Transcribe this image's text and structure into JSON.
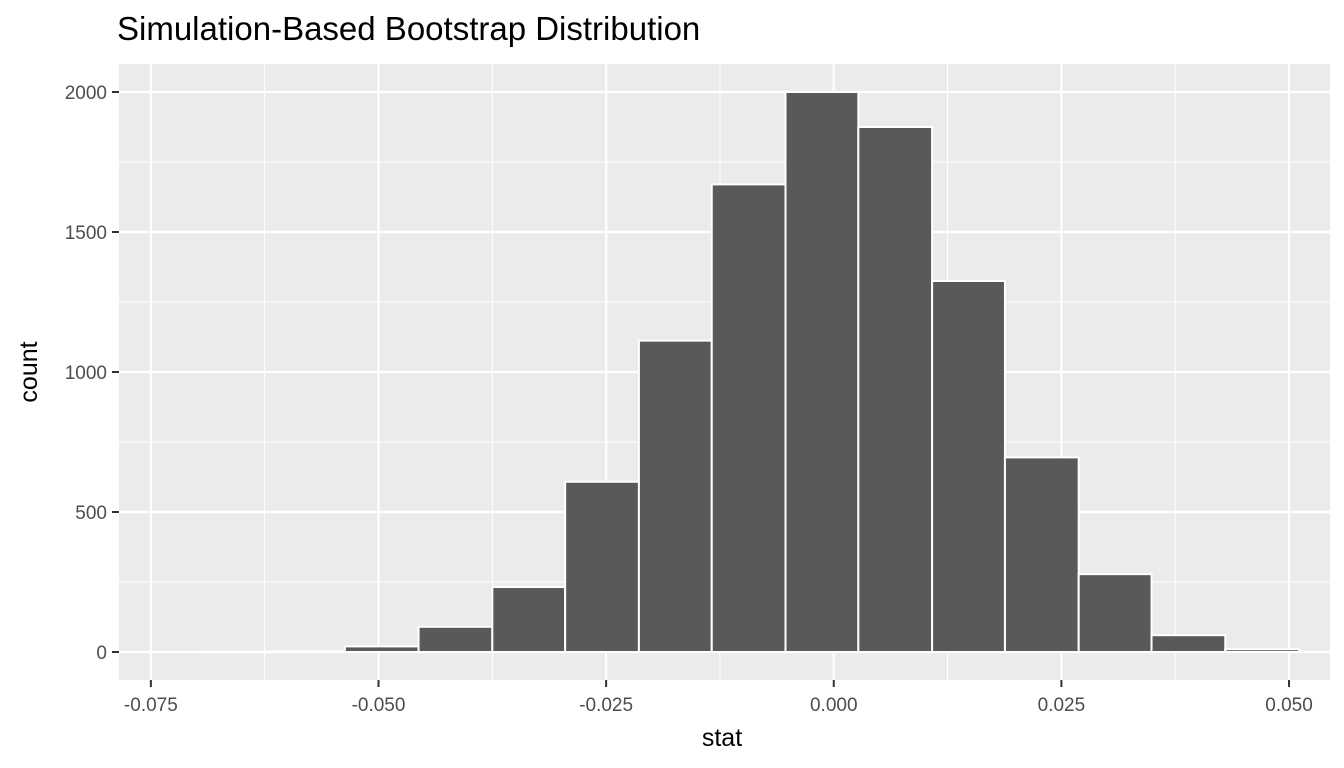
{
  "chart_data": {
    "type": "bar",
    "title": "Simulation-Based Bootstrap Distribution",
    "xlabel": "stat",
    "ylabel": "count",
    "xlim": [
      -0.0785,
      0.0545
    ],
    "ylim": [
      -100,
      2100
    ],
    "x_ticks": [
      -0.075,
      -0.05,
      -0.025,
      0.0,
      0.025,
      0.05
    ],
    "x_tick_labels": [
      "-0.075",
      "-0.050",
      "-0.025",
      "0.000",
      "0.025",
      "0.050"
    ],
    "y_ticks": [
      0,
      500,
      1000,
      1500,
      2000
    ],
    "y_tick_labels": [
      "0",
      "500",
      "1000",
      "1500",
      "2000"
    ],
    "grid": true,
    "bins": [
      {
        "x0": -0.0698,
        "x1": -0.0617,
        "count": 1
      },
      {
        "x0": -0.0617,
        "x1": -0.0537,
        "count": 2
      },
      {
        "x0": -0.0537,
        "x1": -0.0456,
        "count": 20
      },
      {
        "x0": -0.0456,
        "x1": -0.0375,
        "count": 90
      },
      {
        "x0": -0.0375,
        "x1": -0.0295,
        "count": 232
      },
      {
        "x0": -0.0295,
        "x1": -0.0214,
        "count": 608
      },
      {
        "x0": -0.0214,
        "x1": -0.0134,
        "count": 1112
      },
      {
        "x0": -0.0134,
        "x1": -0.0053,
        "count": 1670
      },
      {
        "x0": -0.0053,
        "x1": 0.0027,
        "count": 2000
      },
      {
        "x0": 0.0027,
        "x1": 0.0108,
        "count": 1875
      },
      {
        "x0": 0.0108,
        "x1": 0.0188,
        "count": 1325
      },
      {
        "x0": 0.0188,
        "x1": 0.0269,
        "count": 695
      },
      {
        "x0": 0.0269,
        "x1": 0.0349,
        "count": 278
      },
      {
        "x0": 0.0349,
        "x1": 0.043,
        "count": 60
      },
      {
        "x0": 0.043,
        "x1": 0.0511,
        "count": 10
      }
    ],
    "colors": {
      "panel": "#ebebeb",
      "grid": "#ffffff",
      "bar_fill": "#595959",
      "bar_stroke": "#ffffff",
      "tick_text": "#4d4d4d",
      "tick_mark": "#333333"
    }
  }
}
